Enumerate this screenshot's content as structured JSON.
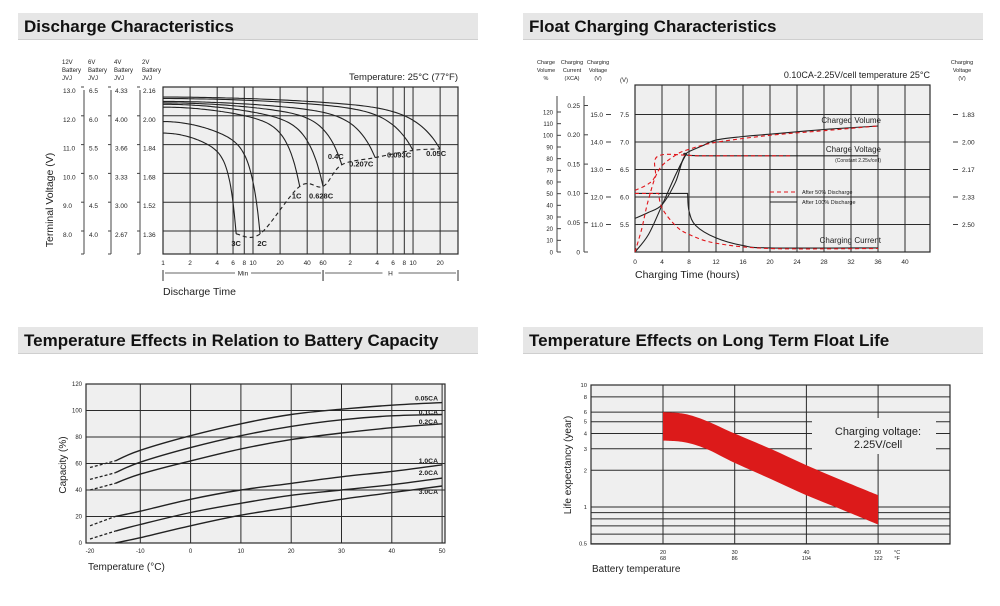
{
  "panels": [
    {
      "title": "Discharge Characteristics"
    },
    {
      "title": "Float Charging Characteristics"
    },
    {
      "title": "Temperature Effects in Relation to Battery Capacity"
    },
    {
      "title": "Temperature Effects on Long Term Float Life"
    }
  ],
  "colors": {
    "header_bg": "#e6e6e6",
    "plot_bg": "#efefef",
    "grid": "#2b2b2b",
    "accent_red": "#e0161b",
    "curve": "#222222"
  },
  "chart_data": [
    {
      "type": "line",
      "annotation": "Temperature: 25°C (77°F)",
      "xlabel": "Discharge Time",
      "ylabel": "Terminal Voltage (V)",
      "x_scale": "log",
      "x_unit": "minutes",
      "xlim": [
        1,
        1900
      ],
      "ylim": [
        7.2,
        13.0
      ],
      "grid": true,
      "tick_voltages_12v": [
        13,
        12,
        11,
        10,
        9,
        8
      ],
      "voltage_axes": [
        {
          "header": [
            "12V",
            "Battery",
            "JVJ"
          ],
          "ticks": [
            "13.0",
            "12.0",
            "11.0",
            "10.0",
            "9.0",
            "8.0"
          ]
        },
        {
          "header": [
            "6V",
            "Battery",
            "JVJ"
          ],
          "ticks": [
            "6.5",
            "6.0",
            "5.5",
            "5.0",
            "4.5",
            "4.0"
          ]
        },
        {
          "header": [
            "4V",
            "Battery",
            "JVJ"
          ],
          "ticks": [
            "4.33",
            "4.00",
            "3.66",
            "3.33",
            "3.00",
            "2.67"
          ]
        },
        {
          "header": [
            "2V",
            "Battery",
            "JVJ"
          ],
          "ticks": [
            "2.16",
            "2.00",
            "1.84",
            "1.68",
            "1.52",
            "1.36"
          ]
        }
      ],
      "x_ticks": [
        {
          "label": "1",
          "min": 1
        },
        {
          "label": "2",
          "min": 2
        },
        {
          "label": "4",
          "min": 4
        },
        {
          "label": "6",
          "min": 6
        },
        {
          "label": "8",
          "min": 8
        },
        {
          "label": "10",
          "min": 10
        },
        {
          "label": "20",
          "min": 20
        },
        {
          "label": "40",
          "min": 40
        },
        {
          "label": "60",
          "min": 60
        },
        {
          "label": "2",
          "min": 120
        },
        {
          "label": "4",
          "min": 240
        },
        {
          "label": "6",
          "min": 360
        },
        {
          "label": "8",
          "min": 480
        },
        {
          "label": "10",
          "min": 600
        },
        {
          "label": "20",
          "min": 1200
        }
      ],
      "x_ranges": [
        {
          "label": "Min",
          "from": 1,
          "to": 60
        },
        {
          "label": "H",
          "from": 60,
          "to": 1900
        }
      ],
      "series": [
        {
          "name": "3C",
          "start_v": 11.4,
          "end_min": 6.5,
          "end_v": 7.9
        },
        {
          "name": "2C",
          "start_v": 11.8,
          "end_min": 12,
          "end_v": 7.9
        },
        {
          "name": "1C",
          "start_v": 12.3,
          "end_min": 33,
          "end_v": 9.55
        },
        {
          "name": "0.628C",
          "start_v": 12.4,
          "end_min": 60,
          "end_v": 9.55
        },
        {
          "name": "0.4C",
          "start_v": 12.45,
          "end_min": 97,
          "end_v": 10.3
        },
        {
          "name": "0.207C",
          "start_v": 12.5,
          "end_min": 228,
          "end_v": 10.55
        },
        {
          "name": "0.093C",
          "start_v": 12.6,
          "end_min": 600,
          "end_v": 10.8
        },
        {
          "name": "0.05C",
          "start_v": 12.65,
          "end_min": 1200,
          "end_v": 10.85
        }
      ],
      "cutoff_line": [
        [
          6.5,
          7.9
        ],
        [
          12,
          7.9
        ],
        [
          33,
          9.55
        ],
        [
          60,
          9.55
        ],
        [
          97,
          10.3
        ],
        [
          228,
          10.55
        ],
        [
          600,
          10.8
        ],
        [
          1200,
          10.85
        ]
      ]
    },
    {
      "type": "line",
      "annotation": "0.10CA-2.25V/cell  temperature 25°C",
      "xlabel": "Charging Time (hours)",
      "xlim": [
        0,
        43.7
      ],
      "grid": true,
      "x_ticks": [
        "0",
        "4",
        "8",
        "12",
        "16",
        "20",
        "24",
        "28",
        "32",
        "36",
        "40"
      ],
      "axes": {
        "charge_volume": {
          "header": [
            "Charge",
            "Volume",
            "%"
          ],
          "ticks": [
            "0",
            "10",
            "20",
            "30",
            "40",
            "50",
            "60",
            "70",
            "80",
            "90",
            "100",
            "110",
            "120"
          ]
        },
        "charging_current": {
          "header": [
            "Charging",
            "Current",
            "(XCA)"
          ],
          "ticks": [
            "0",
            "0.05",
            "0.10",
            "0.15",
            "0.20",
            "0.25"
          ]
        },
        "charging_voltage_battery": {
          "header": [
            "Charging",
            "Voltage",
            "(V)"
          ],
          "ticks": [
            "11.0",
            "12.0",
            "13.0",
            "14.0",
            "15.0"
          ]
        },
        "cell_voltage": {
          "header": "(V)",
          "ticks": [
            "5.5",
            "6.0",
            "6.5",
            "7.0",
            "7.5"
          ]
        },
        "charging_voltage_cell": {
          "header": [
            "Charging",
            "Voltage",
            "(V)"
          ],
          "ticks": [
            "1.83",
            "2.00",
            "2.17",
            "2.33",
            "2.50"
          ]
        }
      },
      "curve_labels": {
        "volume": "Charged Volume",
        "voltage": "Charge Voltage",
        "voltage_note": "(Constant 2.25v/cell)",
        "current": "Charging Current"
      },
      "legend": [
        {
          "name": "After  50% Discharge",
          "style": "dashed",
          "color": "#e0161b"
        },
        {
          "name": "After 100% Discharge",
          "style": "solid",
          "color": "#222222"
        }
      ],
      "series": [
        {
          "curve": "Charged Volume",
          "discharge": "100%",
          "unit": "%",
          "points": [
            [
              0,
              0
            ],
            [
              2,
              15
            ],
            [
              4,
              40
            ],
            [
              6,
              66
            ],
            [
              7.5,
              83
            ],
            [
              8,
              86
            ],
            [
              10,
              91
            ],
            [
              12,
              96
            ],
            [
              16,
              99
            ],
            [
              20,
              101
            ],
            [
              28,
              105
            ],
            [
              36,
              108
            ]
          ]
        },
        {
          "curve": "Charge Voltage",
          "discharge": "100%",
          "unit": "V",
          "points": [
            [
              0,
              5.61
            ],
            [
              2,
              5.72
            ],
            [
              4,
              5.86
            ],
            [
              6,
              6.27
            ],
            [
              7.5,
              6.76
            ],
            [
              10,
              6.75
            ],
            [
              36,
              6.75
            ]
          ]
        },
        {
          "curve": "Charging Current",
          "discharge": "100%",
          "unit": "CA",
          "points": [
            [
              0,
              0.1
            ],
            [
              7.8,
              0.1
            ],
            [
              8,
              0.07
            ],
            [
              9,
              0.045
            ],
            [
              12,
              0.024
            ],
            [
              16,
              0.011
            ],
            [
              20,
              0.007
            ],
            [
              36,
              0.007
            ]
          ]
        },
        {
          "curve": "Charged Volume",
          "discharge": "50%",
          "unit": "%",
          "points": [
            [
              0,
              0
            ],
            [
              1,
              20
            ],
            [
              2,
              45
            ],
            [
              3.5,
              70
            ],
            [
              6,
              83
            ],
            [
              8,
              88
            ],
            [
              12,
              94
            ],
            [
              20,
              100
            ],
            [
              28,
              104
            ],
            [
              36,
              108
            ]
          ]
        },
        {
          "curve": "Charge Voltage",
          "discharge": "50%",
          "unit": "V",
          "points": [
            [
              0,
              6.12
            ],
            [
              2,
              6.24
            ],
            [
              3,
              6.39
            ],
            [
              3.5,
              6.75
            ],
            [
              10,
              6.75
            ],
            [
              23,
              6.75
            ]
          ]
        },
        {
          "curve": "Charging Current",
          "discharge": "50%",
          "unit": "CA",
          "points": [
            [
              0,
              0.1
            ],
            [
              3.5,
              0.1
            ],
            [
              4,
              0.075
            ],
            [
              6,
              0.045
            ],
            [
              8,
              0.03
            ],
            [
              12,
              0.015
            ],
            [
              20,
              0.006
            ],
            [
              36,
              0.006
            ]
          ]
        }
      ]
    },
    {
      "type": "line",
      "xlabel": "Temperature (°C)",
      "ylabel": "Capacity (%)",
      "xlim": [
        -20.8,
        50.2
      ],
      "ylim": [
        0,
        120
      ],
      "grid": true,
      "x_ticks": [
        "-20",
        "-10",
        "0",
        "10",
        "20",
        "30",
        "40",
        "50"
      ],
      "y_ticks": [
        "0",
        "20",
        "40",
        "60",
        "80",
        "100",
        "120"
      ],
      "series": [
        {
          "name": "0.05CA",
          "points": [
            [
              -20,
              57
            ],
            [
              -15,
              62
            ],
            [
              -10,
              70
            ],
            [
              0,
              81
            ],
            [
              10,
              90
            ],
            [
              20,
              97
            ],
            [
              30,
              101
            ],
            [
              40,
              104
            ],
            [
              50,
              106
            ]
          ],
          "dashed_until": -15
        },
        {
          "name": "0.1CA",
          "points": [
            [
              -20,
              48
            ],
            [
              -15,
              53
            ],
            [
              -10,
              61
            ],
            [
              0,
              72
            ],
            [
              10,
              81
            ],
            [
              20,
              88
            ],
            [
              30,
              93
            ],
            [
              40,
              96
            ],
            [
              50,
              97
            ]
          ],
          "dashed_until": -15
        },
        {
          "name": "0.2CA",
          "points": [
            [
              -20,
              40
            ],
            [
              -15,
              45
            ],
            [
              -10,
              52
            ],
            [
              0,
              62
            ],
            [
              10,
              71
            ],
            [
              20,
              78
            ],
            [
              30,
              83
            ],
            [
              40,
              87
            ],
            [
              50,
              90
            ]
          ],
          "dashed_until": -15
        },
        {
          "name": "1.0CA",
          "points": [
            [
              -20,
              13
            ],
            [
              -15,
              20
            ],
            [
              -10,
              24
            ],
            [
              0,
              33
            ],
            [
              10,
              40
            ],
            [
              20,
              45
            ],
            [
              30,
              50
            ],
            [
              40,
              54
            ],
            [
              50,
              59
            ]
          ],
          "dashed_until": -15
        },
        {
          "name": "2.0CA",
          "points": [
            [
              -20,
              3
            ],
            [
              -15,
              9
            ],
            [
              -10,
              14
            ],
            [
              0,
              23
            ],
            [
              10,
              30
            ],
            [
              20,
              36
            ],
            [
              30,
              40
            ],
            [
              40,
              44
            ],
            [
              50,
              49
            ]
          ],
          "dashed_until": -15
        },
        {
          "name": "3.0CA",
          "points": [
            [
              -15,
              0
            ],
            [
              -10,
              4
            ],
            [
              0,
              13
            ],
            [
              10,
              21
            ],
            [
              20,
              27
            ],
            [
              30,
              33
            ],
            [
              40,
              38
            ],
            [
              50,
              43
            ]
          ],
          "dashed_until": null
        }
      ]
    },
    {
      "type": "area",
      "xlabel": "Battery temperature",
      "ylabel": "Life expectancy (year)",
      "y_scale": "log",
      "xlim": [
        10,
        60
      ],
      "ylim": [
        0.5,
        10
      ],
      "grid": true,
      "annotation": [
        "Charging voltage:",
        "2.25V/cell"
      ],
      "x_ticks": [
        {
          "c": "20",
          "f": "68"
        },
        {
          "c": "30",
          "f": "86"
        },
        {
          "c": "40",
          "f": "104"
        },
        {
          "c": "50",
          "f": "122"
        }
      ],
      "x_units": {
        "c": "°C",
        "f": "°F"
      },
      "y_ticks": [
        "10",
        "8",
        "6",
        "5",
        "4",
        "3",
        "2",
        "1",
        "0.5"
      ],
      "y_gridlines": [
        10,
        8,
        6,
        5,
        4,
        3,
        2,
        1,
        0.9,
        0.8,
        0.7,
        0.6,
        0.5
      ],
      "band_color": "#dc1a1a",
      "band_upper": [
        [
          20,
          6
        ],
        [
          23,
          5.8
        ],
        [
          26,
          5.1
        ],
        [
          30,
          4.0
        ],
        [
          35,
          3.0
        ],
        [
          40,
          2.2
        ],
        [
          45,
          1.65
        ],
        [
          50,
          1.25
        ]
      ],
      "band_lower": [
        [
          20,
          3.5
        ],
        [
          23,
          3.4
        ],
        [
          26,
          3.0
        ],
        [
          30,
          2.3
        ],
        [
          35,
          1.7
        ],
        [
          40,
          1.25
        ],
        [
          45,
          0.95
        ],
        [
          50,
          0.72
        ]
      ]
    }
  ]
}
